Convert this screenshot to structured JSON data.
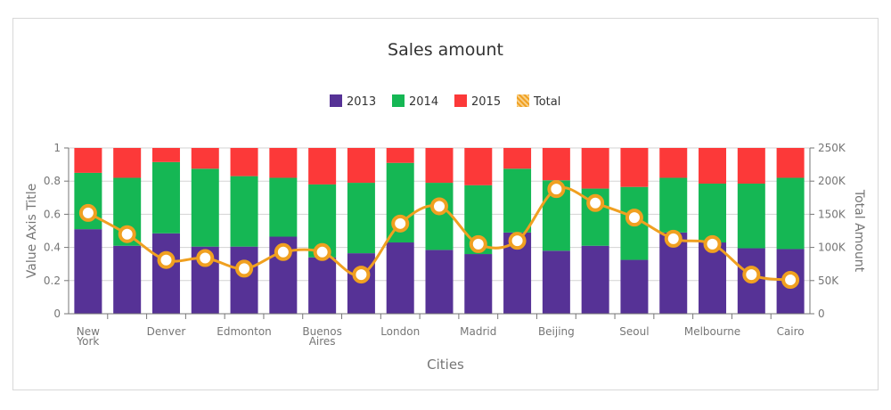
{
  "chart_data": {
    "type": "bar",
    "stacking": "fullstacked",
    "title": "Sales amount",
    "xlabel": "Cities",
    "ylabel": "Value Axis Title",
    "y2label": "Total Amount",
    "ylim": [
      0,
      1
    ],
    "y2lim": [
      0,
      250000
    ],
    "yticks": [
      "0",
      "0.2",
      "0.4",
      "0.6",
      "0.8",
      "1"
    ],
    "y2ticks": [
      "0",
      "50K",
      "100K",
      "150K",
      "200K",
      "250K"
    ],
    "grid": true,
    "legend_position": "top-center",
    "categories": [
      "New\nYork",
      "",
      "Denver",
      "",
      "Edmonton",
      "",
      "Buenos\nAires",
      "",
      "London",
      "",
      "Madrid",
      "",
      "Beijing",
      "",
      "Seoul",
      "",
      "Melbourne",
      "",
      "Cairo"
    ],
    "series": [
      {
        "name": "2013",
        "color": "#563296",
        "values": [
          0.51,
          0.41,
          0.485,
          0.405,
          0.405,
          0.465,
          0.34,
          0.365,
          0.43,
          0.385,
          0.36,
          0.49,
          0.38,
          0.41,
          0.325,
          0.49,
          0.43,
          0.395,
          0.39
        ]
      },
      {
        "name": "2014",
        "color": "#15b754",
        "values": [
          0.34,
          0.41,
          0.43,
          0.47,
          0.425,
          0.355,
          0.44,
          0.425,
          0.48,
          0.405,
          0.415,
          0.385,
          0.425,
          0.345,
          0.44,
          0.33,
          0.355,
          0.39,
          0.43
        ]
      },
      {
        "name": "2015",
        "color": "#fc3939",
        "values": [
          0.15,
          0.18,
          0.085,
          0.125,
          0.17,
          0.18,
          0.22,
          0.21,
          0.09,
          0.21,
          0.225,
          0.125,
          0.195,
          0.245,
          0.235,
          0.18,
          0.215,
          0.215,
          0.18
        ]
      }
    ],
    "line_series": {
      "name": "Total",
      "color": "#f0a020",
      "axis": "right",
      "values": [
        152000,
        120000,
        81000,
        84000,
        68000,
        93000,
        93000,
        59000,
        136000,
        162000,
        105000,
        110000,
        188000,
        167000,
        145000,
        113000,
        105000,
        59000,
        51000
      ]
    }
  }
}
